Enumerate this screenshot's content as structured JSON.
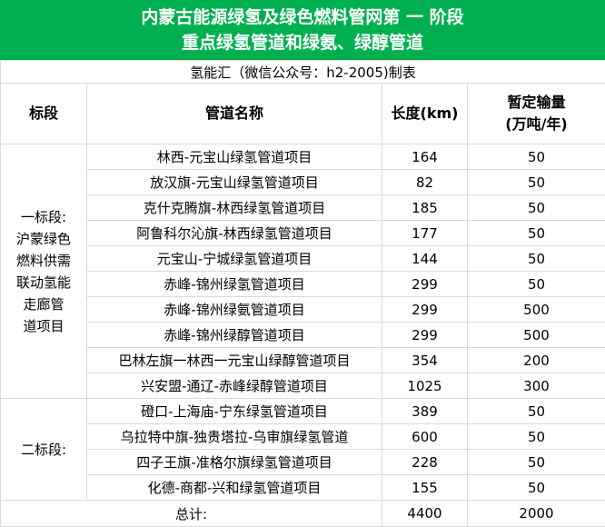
{
  "title": {
    "line1": "内蒙古能源绿氢及绿色燃料管网第 一 阶段",
    "line2": "重点绿氢管道和绿氨、绿醇管道"
  },
  "credit": "氢能汇（微信公众号：h2-2005)制表",
  "headers": {
    "segment": "标段",
    "name": "管道名称",
    "length": "长度(km)",
    "volume": "暂定输量\n(万吨/年)"
  },
  "sections": [
    {
      "label": "一标段:\n沪蒙绿色\n燃料供需\n联动氢能\n走廊管\n道项目",
      "rows": [
        {
          "name": "林西-元宝山绿氢管道项目",
          "length": "164",
          "volume": "50"
        },
        {
          "name": "放汉旗-元宝山绿氢管道项目",
          "length": "82",
          "volume": "50"
        },
        {
          "name": "克什克腾旗-林西绿氢管道项目",
          "length": "185",
          "volume": "50"
        },
        {
          "name": "阿鲁科尔沁旗-林西绿氢管道项目",
          "length": "177",
          "volume": "50"
        },
        {
          "name": "元宝山-宁城绿氢管道项目",
          "length": "144",
          "volume": "50"
        },
        {
          "name": "赤峰-锦州绿氢管道项目",
          "length": "299",
          "volume": "50"
        },
        {
          "name": "赤峰-锦州绿氨管道项目",
          "length": "299",
          "volume": "500"
        },
        {
          "name": "赤峰-锦州绿醇管道项目",
          "length": "299",
          "volume": "500"
        },
        {
          "name": "巴林左旗一林西一元宝山绿醇管道项目",
          "length": "354",
          "volume": "200"
        },
        {
          "name": "兴安盟-通辽-赤峰绿醇管道项目",
          "length": "1025",
          "volume": "300"
        }
      ]
    },
    {
      "label": "二标段:",
      "rows": [
        {
          "name": "磴口-上海庙-宁东绿氢管道项目",
          "length": "389",
          "volume": "50"
        },
        {
          "name": "乌拉特中旗-独贵塔拉-乌审旗绿氢管道",
          "length": "600",
          "volume": "50"
        },
        {
          "name": "四子王旗-准格尔旗绿氢管道项目",
          "length": "228",
          "volume": "50"
        },
        {
          "name": "化德-商都-兴和绿氢管道项目",
          "length": "155",
          "volume": "50"
        }
      ]
    }
  ],
  "total": {
    "label": "总计:",
    "length": "4400",
    "volume": "2000"
  },
  "colors": {
    "header_bg": "#00b050",
    "border": "#d9d9d9"
  }
}
